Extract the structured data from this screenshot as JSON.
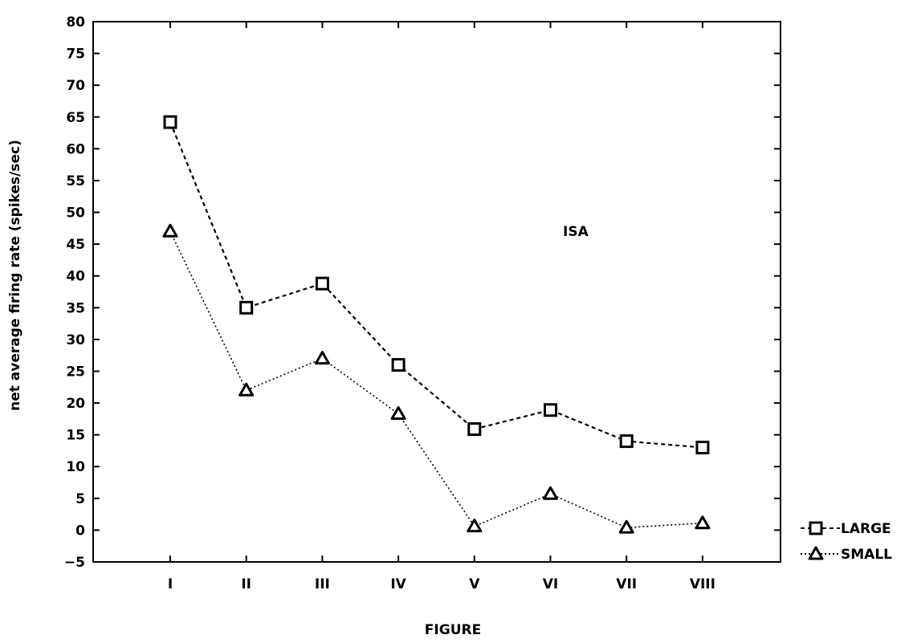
{
  "chart_data": {
    "type": "line",
    "title": "",
    "xlabel": "FIGURE",
    "ylabel": "net average firing rate (spikes/sec)",
    "categories": [
      "I",
      "II",
      "III",
      "IV",
      "V",
      "VI",
      "VII",
      "VIII"
    ],
    "ylim": [
      -5,
      80
    ],
    "yticks": [
      -5,
      0,
      5,
      10,
      15,
      20,
      25,
      30,
      35,
      40,
      45,
      50,
      55,
      60,
      65,
      70,
      75,
      80
    ],
    "grid": false,
    "legend_position": "outside-bottom-right",
    "annotation": "ISA",
    "series": [
      {
        "name": "LARGE",
        "marker": "square",
        "line": "dashed",
        "values": [
          64.2,
          35.0,
          38.8,
          26.0,
          15.9,
          18.9,
          14.0,
          13.0
        ]
      },
      {
        "name": "SMALL",
        "marker": "triangle",
        "line": "dotted",
        "values": [
          47.0,
          22.0,
          27.0,
          18.3,
          0.6,
          5.7,
          0.4,
          1.1
        ]
      }
    ]
  }
}
